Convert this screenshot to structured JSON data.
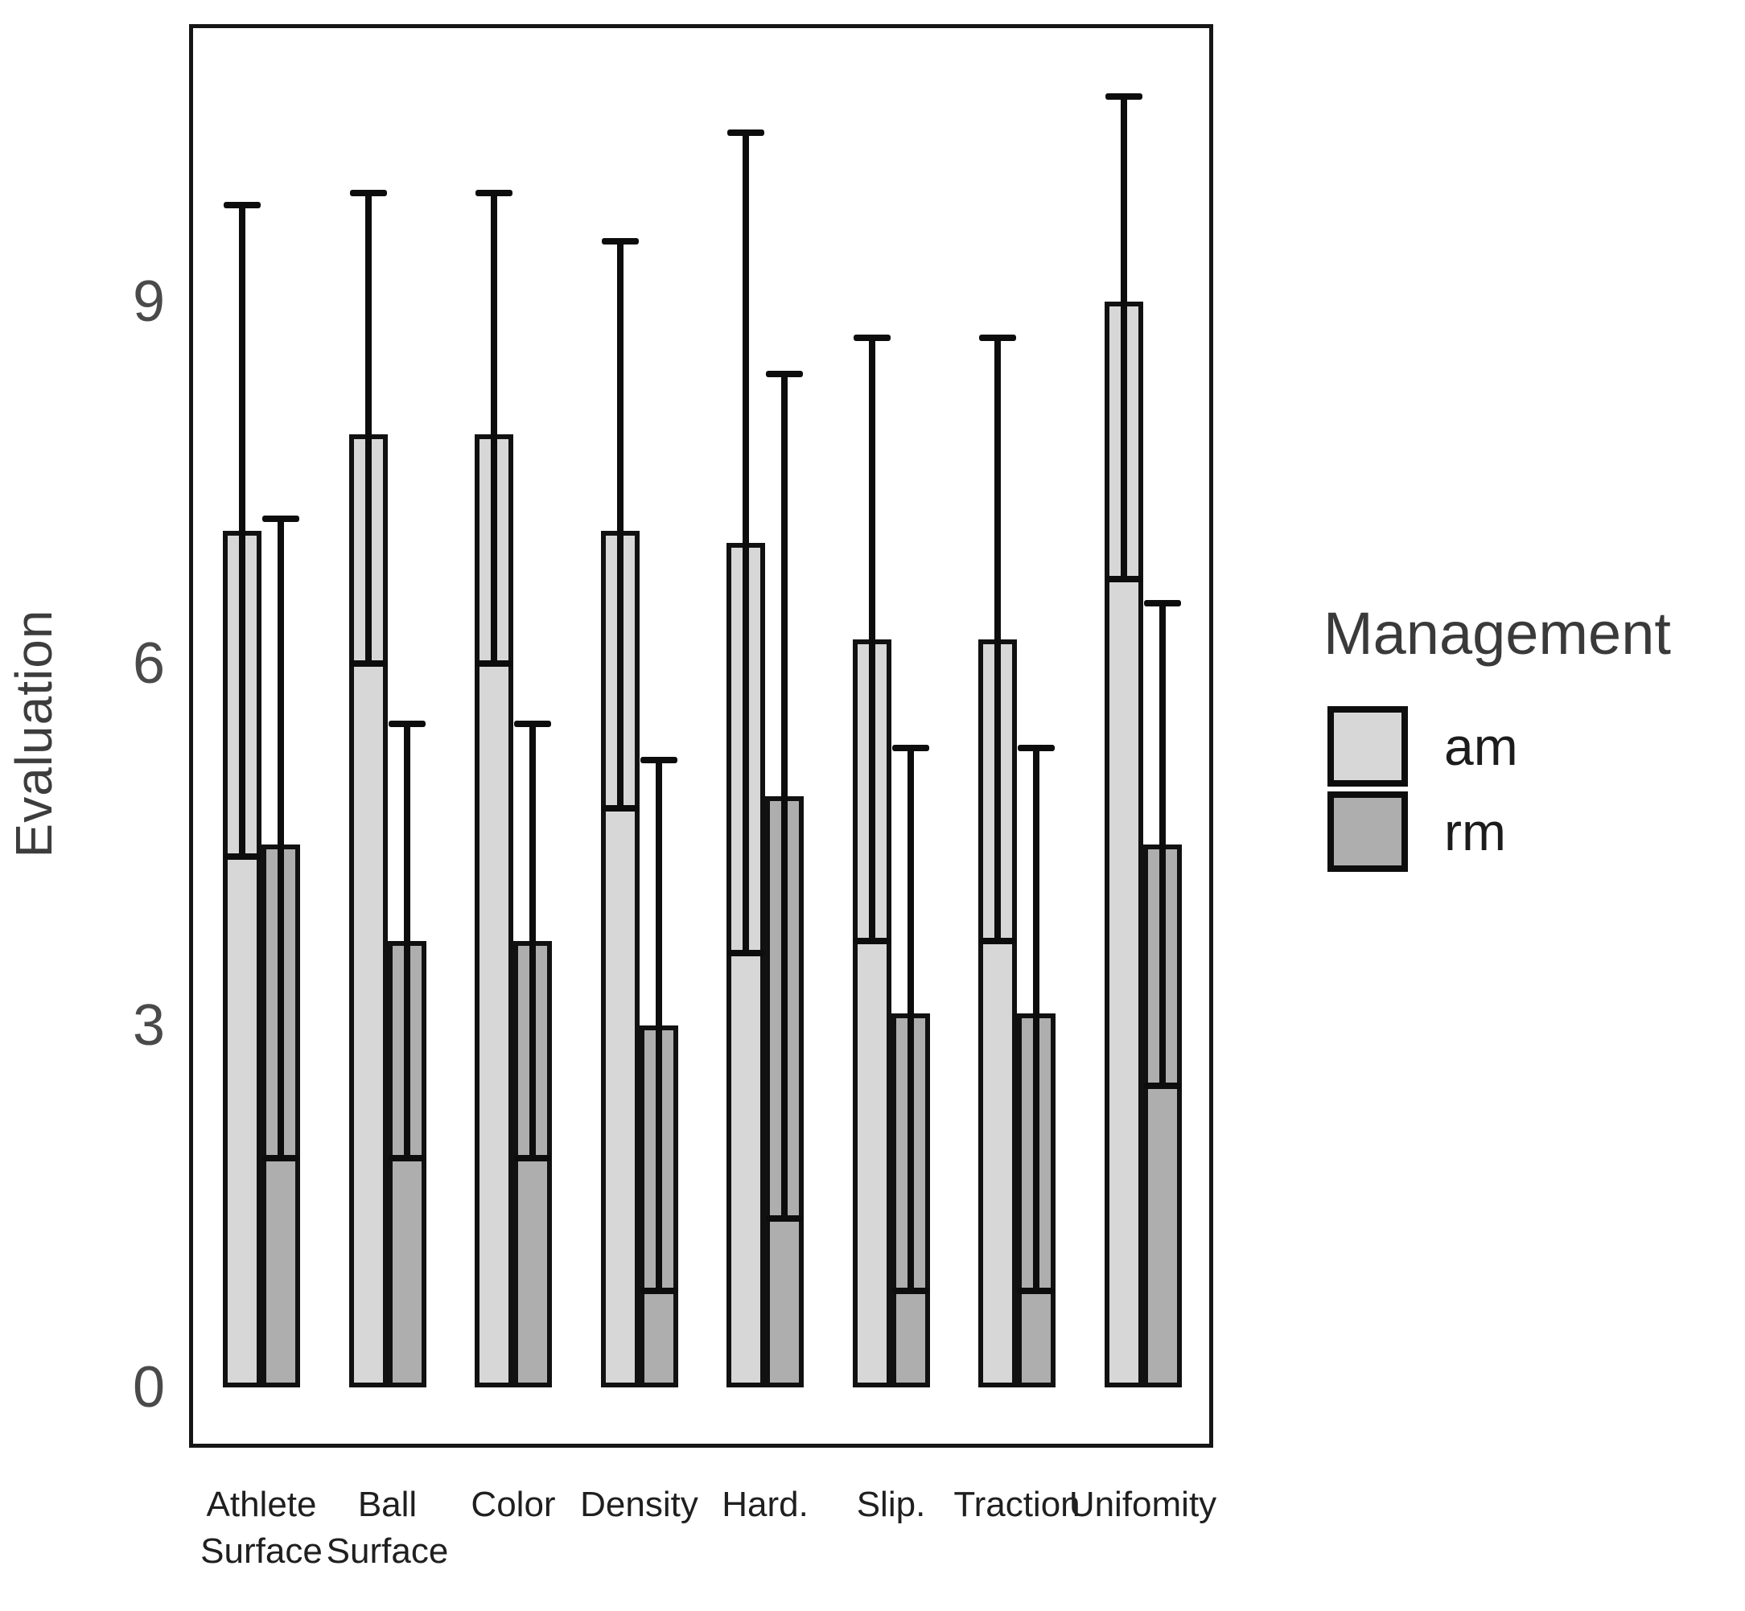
{
  "y_axis": {
    "label": "Evaluation",
    "ticks": [
      "0",
      "3",
      "6",
      "9"
    ]
  },
  "legend": {
    "title": "Management",
    "items": [
      {
        "label": "am",
        "color": "#d7d7d7"
      },
      {
        "label": "rm",
        "color": "#aeaeae"
      }
    ]
  },
  "chart_data": {
    "type": "bar",
    "title": "",
    "xlabel": "",
    "ylabel": "Evaluation",
    "ylim": [
      0,
      11.3
    ],
    "yticks": [
      0,
      3,
      6,
      9
    ],
    "grid": false,
    "legend_position": "right",
    "legend_title": "Management",
    "error_bar_style": "vertical line with caps at both ends (mean ± sd)",
    "bar_outline_color": "#111111",
    "categories": [
      "Athlete Surface",
      "Ball Surface",
      "Color",
      "Density",
      "Hard.",
      "Slip.",
      "Traction",
      "Unifomity"
    ],
    "category_label_lines": [
      [
        "Athlete",
        "Surface"
      ],
      [
        "Ball",
        "Surface"
      ],
      [
        "Color"
      ],
      [
        "Density"
      ],
      [
        "Hard."
      ],
      [
        "Slip."
      ],
      [
        "Traction"
      ],
      [
        "Unifomity"
      ]
    ],
    "series": [
      {
        "name": "am",
        "color": "#d7d7d7",
        "values": [
          7.1,
          7.9,
          7.9,
          7.1,
          7.0,
          6.2,
          6.2,
          9.0
        ],
        "error_top": [
          9.8,
          9.9,
          9.9,
          9.5,
          10.4,
          8.7,
          8.7,
          10.7
        ],
        "error_bottom": [
          4.4,
          6.0,
          6.0,
          4.8,
          3.6,
          3.7,
          3.7,
          6.7
        ]
      },
      {
        "name": "rm",
        "color": "#aeaeae",
        "values": [
          4.5,
          3.7,
          3.7,
          3.0,
          4.9,
          3.1,
          3.1,
          4.5
        ],
        "error_top": [
          7.2,
          5.5,
          5.5,
          5.2,
          8.4,
          5.3,
          5.3,
          6.5
        ],
        "error_bottom": [
          1.9,
          1.9,
          1.9,
          0.8,
          1.4,
          0.8,
          0.8,
          2.5
        ]
      }
    ]
  }
}
